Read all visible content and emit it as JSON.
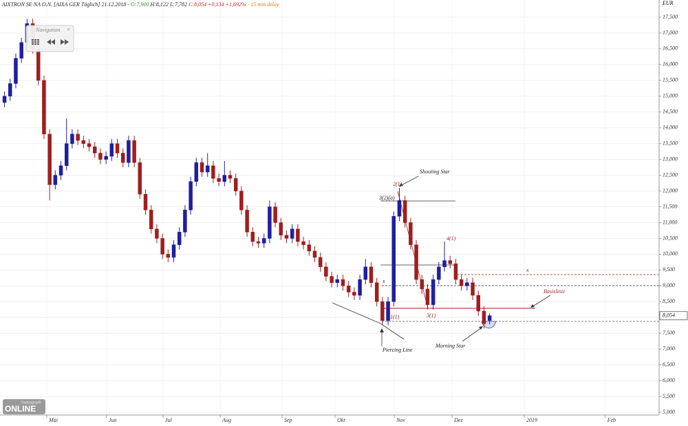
{
  "header": {
    "name": "AIXTRON SE NA O.N. [AIXA GER Täglich] 21.12.2018 -",
    "open": "O:7,900",
    "high": "H:8,122",
    "low": "L:7,782",
    "close": "C:8,054",
    "change": "+0,134 +1,692%",
    "delay": "- 15 min delay"
  },
  "navigation": {
    "title": "Navigation",
    "close": "×"
  },
  "logo": {
    "brand": "Tradesignal®",
    "product": "online"
  },
  "annotations": [
    "Shooting Star",
    "Piercing Line",
    "Morning Star",
    "Basislinie",
    "x",
    "x",
    "2(1)",
    "3(2)(a)",
    "1(1)",
    "3(1)",
    "4(1)"
  ],
  "chart_data": {
    "type": "candlestick",
    "unit": "EUR",
    "up_color": "#1f1f9e",
    "down_color": "#9e1f1f",
    "grid": true,
    "last_price_label": "8,054",
    "xlim": [
      -16.6,
      217.1
    ],
    "xticks": [
      {
        "value": 0,
        "label": "Mai"
      },
      {
        "value": 21.2,
        "label": "Jun"
      },
      {
        "value": 41.2,
        "label": "Jul"
      },
      {
        "value": 61.5,
        "label": "Aug"
      },
      {
        "value": 83.4,
        "label": "Sep"
      },
      {
        "value": 102.2,
        "label": "Okt"
      },
      {
        "value": 123.2,
        "label": "Nov"
      },
      {
        "value": 143.7,
        "label": "Dez"
      },
      {
        "value": 169.3,
        "label": "2019"
      },
      {
        "value": 198,
        "label": "Feb"
      }
    ],
    "ylim": [
      4913,
      18044
    ],
    "yticks": [
      {
        "value": 5000,
        "label": "5,000"
      },
      {
        "value": 5500,
        "label": "5,500"
      },
      {
        "value": 6000,
        "label": "6,000"
      },
      {
        "value": 6500,
        "label": "6,500"
      },
      {
        "value": 7000,
        "label": "7,000"
      },
      {
        "value": 7500,
        "label": "7,500"
      },
      {
        "value": 8000,
        "label": "8,000"
      },
      {
        "value": 8500,
        "label": "8,500"
      },
      {
        "value": 9000,
        "label": "9,000"
      },
      {
        "value": 9500,
        "label": "9,500"
      },
      {
        "value": 10000,
        "label": "10,000"
      },
      {
        "value": 10500,
        "label": "10,500"
      },
      {
        "value": 11000,
        "label": "11,000"
      },
      {
        "value": 11500,
        "label": "11,500"
      },
      {
        "value": 12000,
        "label": "12,000"
      },
      {
        "value": 12500,
        "label": "12,500"
      },
      {
        "value": 13000,
        "label": "13,000"
      },
      {
        "value": 13500,
        "label": "13,500"
      },
      {
        "value": 14000,
        "label": "14,000"
      },
      {
        "value": 14500,
        "label": "14,500"
      },
      {
        "value": 15000,
        "label": "15,000"
      },
      {
        "value": 15500,
        "label": "15,500"
      },
      {
        "value": 16000,
        "label": "16,000"
      },
      {
        "value": 16500,
        "label": "16,500"
      },
      {
        "value": 17000,
        "label": "17,000"
      },
      {
        "value": 17500,
        "label": "17,500"
      }
    ],
    "x": [
      -15,
      -13,
      -11,
      -9,
      -7,
      -5,
      -3,
      -1,
      1,
      3,
      5,
      7,
      9,
      11,
      13,
      15,
      17,
      19,
      21,
      23,
      25,
      27,
      29,
      31,
      33,
      35,
      37,
      39,
      41,
      43,
      45,
      47,
      49,
      51,
      53,
      55,
      57,
      59,
      61,
      63,
      65,
      67,
      69,
      71,
      73,
      75,
      77,
      79,
      81,
      83,
      85,
      87,
      89,
      91,
      93,
      95,
      97,
      99,
      101,
      103,
      105,
      107,
      109,
      111,
      113,
      115,
      117,
      119,
      121,
      123,
      125,
      127,
      129,
      131,
      133,
      135,
      137,
      139,
      141,
      143,
      145,
      147,
      149,
      151,
      153,
      155,
      157
    ],
    "open": [
      14800,
      15000,
      15400,
      16200,
      16700,
      17300,
      16500,
      15500,
      13800,
      12200,
      12500,
      12800,
      13500,
      13800,
      13600,
      13500,
      13400,
      13200,
      13000,
      13100,
      13500,
      13200,
      12900,
      13600,
      12900,
      11900,
      11400,
      10800,
      10500,
      10000,
      9900,
      10300,
      10700,
      11400,
      12300,
      12900,
      12600,
      12800,
      12400,
      12300,
      12500,
      12400,
      12000,
      11400,
      10700,
      10400,
      10350,
      10500,
      11500,
      11000,
      10600,
      10500,
      10800,
      10400,
      10300,
      10100,
      9900,
      9600,
      9300,
      9100,
      9200,
      9000,
      8800,
      8700,
      9200,
      9600,
      9100,
      8500,
      7900,
      8500,
      11200,
      11700,
      11000,
      10300,
      9200,
      8900,
      8400,
      9200,
      9600,
      9800,
      9700,
      9200,
      9000,
      9100,
      8700,
      8200,
      7900
    ],
    "high": [
      15150,
      15550,
      16350,
      16850,
      17450,
      17450,
      16650,
      15650,
      13950,
      12650,
      12950,
      14300,
      13950,
      13950,
      13750,
      13650,
      13550,
      13350,
      13250,
      13650,
      13650,
      13350,
      13750,
      13750,
      13050,
      12050,
      11550,
      10950,
      10650,
      10150,
      10450,
      10850,
      11550,
      12450,
      13050,
      13050,
      13200,
      12950,
      12550,
      12950,
      12650,
      12550,
      12150,
      11550,
      10850,
      10550,
      10650,
      11700,
      11650,
      11150,
      10750,
      10950,
      10950,
      10550,
      10450,
      10250,
      10050,
      9750,
      9450,
      9350,
      9350,
      9150,
      8950,
      9350,
      9850,
      9750,
      9250,
      8650,
      8650,
      11350,
      12100,
      11850,
      11150,
      10450,
      9350,
      9050,
      9350,
      9750,
      10400,
      9950,
      9850,
      9350,
      9250,
      9250,
      8850,
      8350,
      8122
    ],
    "low": [
      14650,
      14850,
      15250,
      16050,
      16550,
      16350,
      15350,
      13650,
      11700,
      12050,
      12350,
      12650,
      13350,
      13450,
      13350,
      13250,
      13050,
      12850,
      12850,
      12950,
      13050,
      12750,
      12750,
      12750,
      11750,
      11250,
      10650,
      10350,
      9850,
      9750,
      9750,
      10150,
      10550,
      11250,
      12150,
      12450,
      12450,
      12250,
      12150,
      12150,
      12250,
      11850,
      11250,
      10550,
      10250,
      10200,
      10200,
      10350,
      10850,
      10450,
      10350,
      10350,
      10250,
      10150,
      9950,
      9750,
      9450,
      9150,
      8950,
      8950,
      8850,
      8650,
      8550,
      8550,
      9050,
      8950,
      8350,
      7750,
      7750,
      8350,
      11050,
      10850,
      10150,
      9050,
      8750,
      8250,
      8250,
      9050,
      9450,
      9550,
      9050,
      8850,
      8850,
      8550,
      8050,
      7650,
      7782
    ],
    "close": [
      15000,
      15400,
      16200,
      16700,
      17300,
      16500,
      15500,
      13800,
      12200,
      12500,
      12800,
      13500,
      13800,
      13600,
      13500,
      13400,
      13200,
      13000,
      13100,
      13500,
      13200,
      12900,
      13600,
      12900,
      11900,
      11400,
      10800,
      10500,
      10000,
      9900,
      10300,
      10700,
      11400,
      12300,
      12900,
      12600,
      12800,
      12400,
      12300,
      12500,
      12400,
      12000,
      11400,
      10700,
      10400,
      10350,
      10500,
      11500,
      11000,
      10600,
      10500,
      10800,
      10400,
      10300,
      10100,
      9900,
      9600,
      9300,
      9100,
      9200,
      9000,
      8800,
      8700,
      9200,
      9600,
      9100,
      8500,
      7900,
      8500,
      11200,
      11700,
      11000,
      10300,
      9200,
      8900,
      8400,
      9200,
      9600,
      9800,
      9700,
      9200,
      9000,
      9100,
      8700,
      8200,
      7800,
      8054
    ]
  }
}
